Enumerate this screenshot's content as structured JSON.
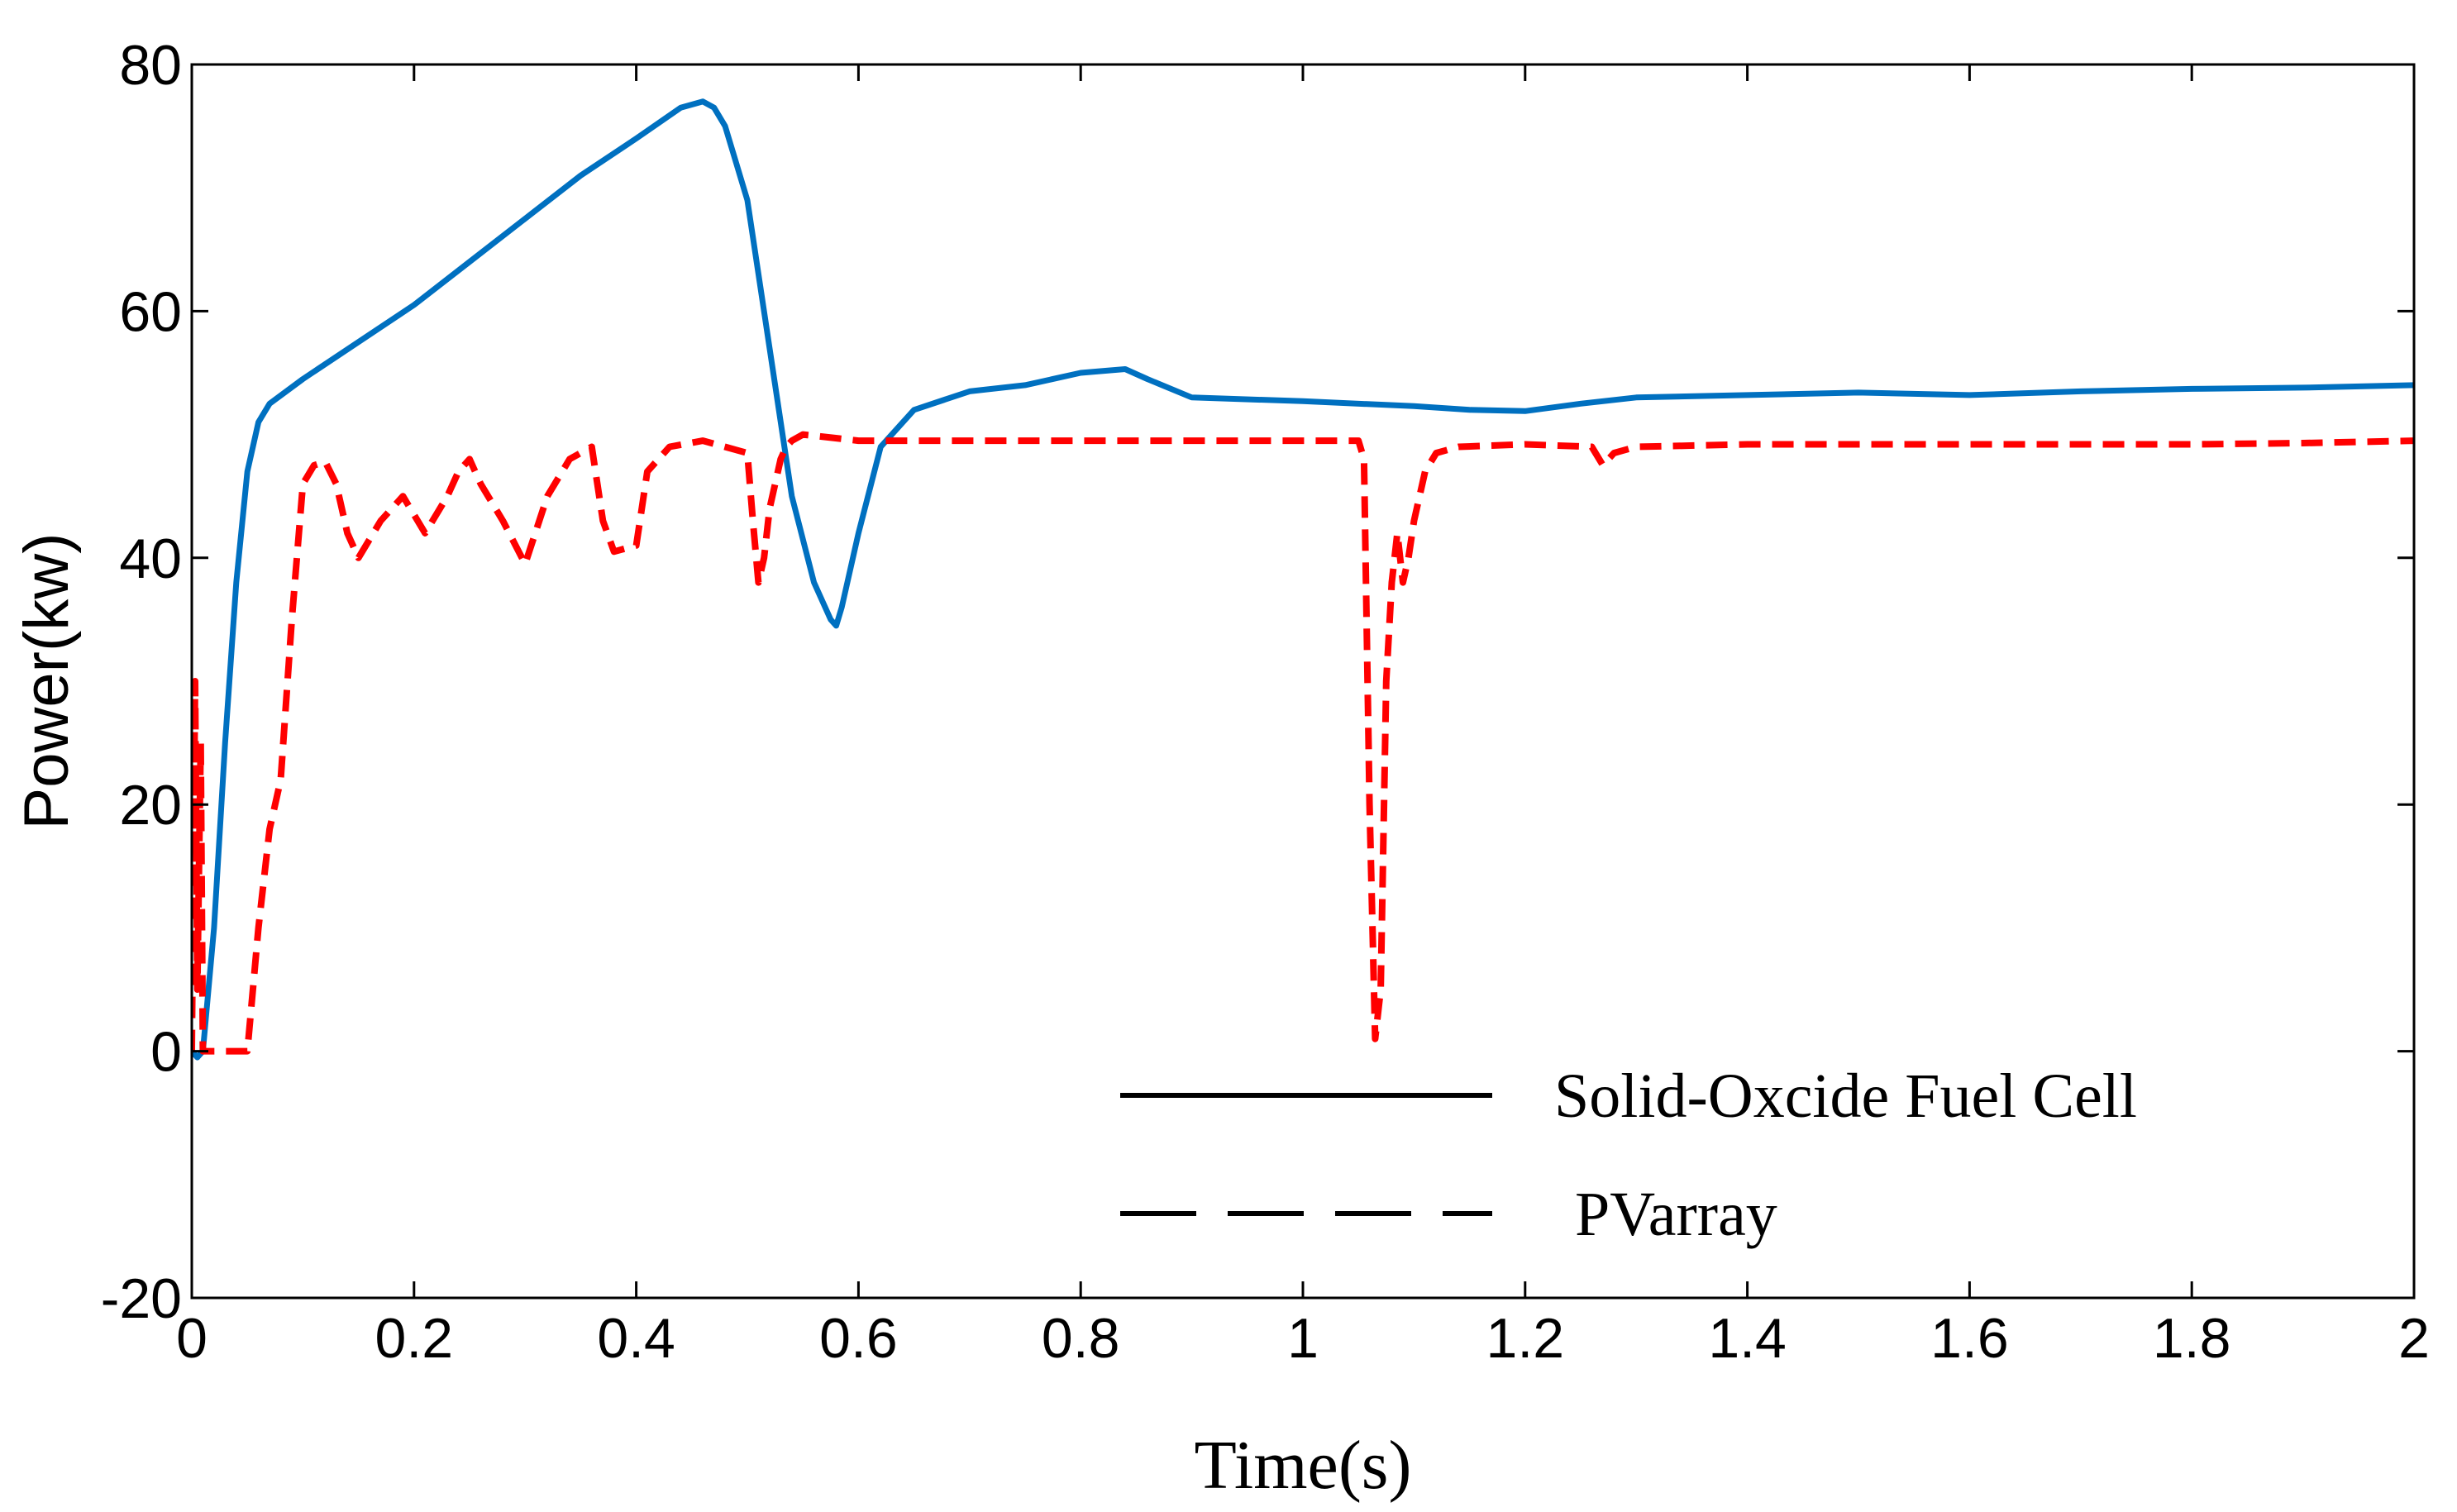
{
  "chart_data": {
    "type": "line",
    "title": "",
    "xlabel": "Time(s)",
    "ylabel": "Power(kw)",
    "xlim": [
      0,
      2
    ],
    "ylim": [
      -20,
      80
    ],
    "xticks": [
      0,
      0.2,
      0.4,
      0.6,
      0.8,
      1,
      1.2,
      1.4,
      1.6,
      1.8,
      2
    ],
    "xtick_labels": [
      "0",
      "0.2",
      "0.4",
      "0.6",
      "0.8",
      "1",
      "1.2",
      "1.4",
      "1.6",
      "1.8",
      "2"
    ],
    "yticks": [
      -20,
      0,
      20,
      40,
      60,
      80
    ],
    "ytick_labels": [
      "-20",
      "0",
      "20",
      "40",
      "60",
      "80"
    ],
    "grid": false,
    "legend_position": "bottom-right",
    "series": [
      {
        "name": "Solid-Oxcide Fuel Cell",
        "color": "#0070C0",
        "style": "solid",
        "legend_line_color": "#000000",
        "x": [
          0,
          0.005,
          0.01,
          0.02,
          0.03,
          0.04,
          0.05,
          0.06,
          0.07,
          0.1,
          0.15,
          0.2,
          0.25,
          0.3,
          0.35,
          0.4,
          0.44,
          0.46,
          0.47,
          0.48,
          0.5,
          0.52,
          0.54,
          0.56,
          0.575,
          0.58,
          0.585,
          0.6,
          0.62,
          0.65,
          0.7,
          0.75,
          0.8,
          0.84,
          0.86,
          0.9,
          1.0,
          1.1,
          1.15,
          1.2,
          1.25,
          1.3,
          1.4,
          1.5,
          1.6,
          1.7,
          1.8,
          1.9,
          2.0
        ],
        "values": [
          0,
          -0.5,
          0,
          10,
          25,
          38,
          47,
          51,
          52.5,
          54.5,
          57.5,
          60.5,
          64,
          67.5,
          71,
          74,
          76.5,
          77,
          76.5,
          75,
          69,
          57,
          45,
          38,
          35,
          34.5,
          36,
          42,
          49,
          52,
          53.5,
          54,
          55,
          55.3,
          54.5,
          53,
          52.7,
          52.3,
          52,
          51.9,
          52.5,
          53,
          53.2,
          53.4,
          53.2,
          53.5,
          53.7,
          53.8,
          54
        ]
      },
      {
        "name": "PVarray",
        "color": "#FF0000",
        "style": "dashed",
        "legend_line_color": "#000000",
        "x": [
          0,
          0.003,
          0.005,
          0.008,
          0.01,
          0.02,
          0.04,
          0.05,
          0.06,
          0.07,
          0.08,
          0.09,
          0.1,
          0.11,
          0.12,
          0.13,
          0.14,
          0.15,
          0.17,
          0.19,
          0.21,
          0.23,
          0.24,
          0.25,
          0.26,
          0.28,
          0.3,
          0.32,
          0.34,
          0.36,
          0.37,
          0.38,
          0.4,
          0.41,
          0.43,
          0.46,
          0.5,
          0.505,
          0.51,
          0.515,
          0.52,
          0.525,
          0.53,
          0.535,
          0.54,
          0.55,
          0.6,
          0.7,
          0.8,
          0.9,
          1.0,
          1.05,
          1.055,
          1.06,
          1.065,
          1.07,
          1.075,
          1.08,
          1.085,
          1.09,
          1.095,
          1.1,
          1.11,
          1.12,
          1.14,
          1.2,
          1.26,
          1.27,
          1.28,
          1.3,
          1.4,
          1.5,
          1.6,
          1.7,
          1.8,
          1.9,
          2.0
        ],
        "values": [
          0,
          30,
          5,
          25,
          0,
          0,
          0,
          0,
          10,
          18,
          22,
          35,
          46,
          47.5,
          47.8,
          46,
          42,
          40,
          43,
          45,
          42,
          45,
          47,
          48,
          46,
          43,
          39.5,
          45,
          48,
          49,
          43,
          40.5,
          41,
          47,
          49,
          49.5,
          48.5,
          43,
          38,
          40,
          44,
          46,
          48,
          49,
          49.5,
          50,
          49.5,
          49.5,
          49.5,
          49.5,
          49.5,
          49.5,
          48,
          20,
          1,
          5,
          30,
          38,
          42,
          38,
          40,
          43,
          47,
          48.5,
          49,
          49.2,
          49,
          47.5,
          48.5,
          49,
          49.2,
          49.2,
          49.2,
          49.2,
          49.2,
          49.3,
          49.5
        ]
      }
    ]
  }
}
